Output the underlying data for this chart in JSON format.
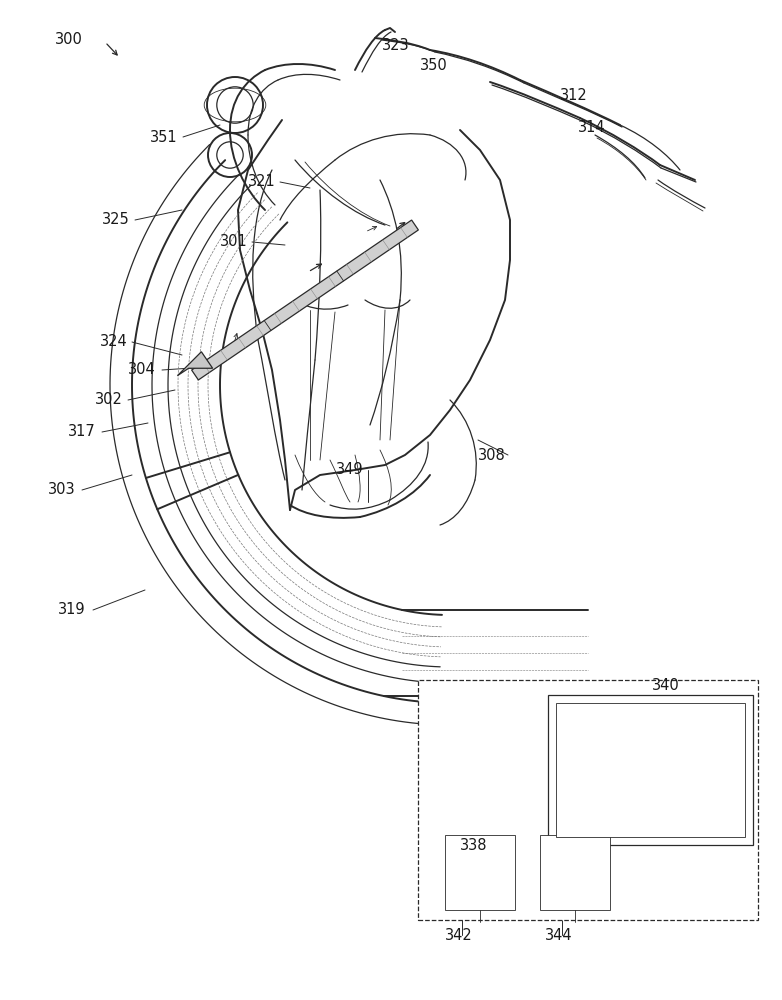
{
  "bg_color": "#ffffff",
  "line_color": "#2a2a2a",
  "label_color": "#1a1a1a",
  "font_size": 10.5,
  "fig_w": 7.82,
  "fig_h": 10.0,
  "dpi": 100
}
